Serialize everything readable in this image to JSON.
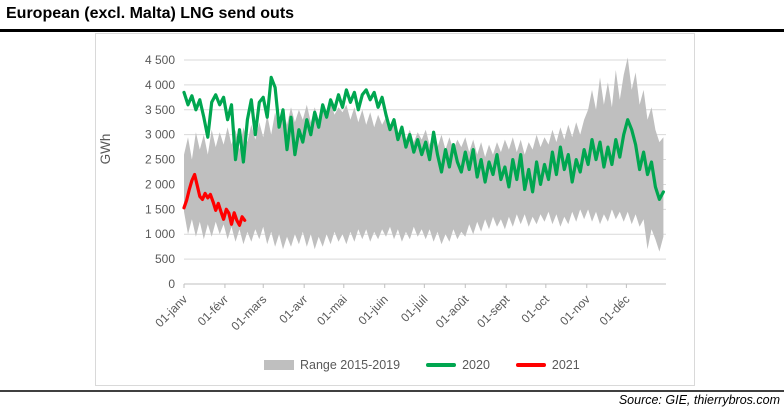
{
  "page": {
    "title": "European (excl. Malta) LNG send outs",
    "source": "Source: GIE, thierrybros.com"
  },
  "colors": {
    "band": "#BFBFBF",
    "series_2020": "#00A650",
    "series_2021": "#FF0000",
    "grid": "#D9D9D9",
    "axis_line": "#BFBFBF",
    "axis_text": "#595959",
    "title_text": "#000000"
  },
  "chart_data": {
    "type": "line",
    "title": "European (excl. Malta) LNG send outs",
    "xlabel": "",
    "ylabel": "GWh",
    "ylim": [
      0,
      4500
    ],
    "x_domain_days": [
      0,
      365
    ],
    "grid": true,
    "legend_position": "bottom",
    "y_tick_values": [
      0,
      500,
      1000,
      1500,
      2000,
      2500,
      3000,
      3500,
      4000,
      4500
    ],
    "y_tick_labels": [
      "0",
      "500",
      "1 000",
      "1 500",
      "2 000",
      "2 500",
      "3 000",
      "3 500",
      "4 000",
      "4 500"
    ],
    "x_ticks": [
      {
        "day": 0,
        "label": "01-janv"
      },
      {
        "day": 31,
        "label": "01-févr"
      },
      {
        "day": 60,
        "label": "01-mars"
      },
      {
        "day": 91,
        "label": "01-avr"
      },
      {
        "day": 121,
        "label": "01-mai"
      },
      {
        "day": 152,
        "label": "01-juin"
      },
      {
        "day": 182,
        "label": "01-juil"
      },
      {
        "day": 213,
        "label": "01-août"
      },
      {
        "day": 244,
        "label": "01-sept"
      },
      {
        "day": 274,
        "label": "01-oct"
      },
      {
        "day": 305,
        "label": "01-nov"
      },
      {
        "day": 335,
        "label": "01-déc"
      }
    ],
    "band": {
      "name": "Range 2015-2019",
      "color": "#BFBFBF",
      "day_start": 0,
      "day_step": 3,
      "max": [
        2600,
        2950,
        2500,
        3050,
        2700,
        3000,
        2600,
        3100,
        2750,
        3050,
        2800,
        3150,
        2800,
        3100,
        2700,
        3150,
        2850,
        3200,
        2900,
        3250,
        2950,
        3400,
        3000,
        3450,
        3100,
        3500,
        3200,
        3550,
        3250,
        3500,
        3300,
        3600,
        3250,
        3550,
        3300,
        3600,
        3350,
        3650,
        3400,
        3550,
        3450,
        3600,
        3300,
        3550,
        3250,
        3500,
        3200,
        3450,
        3150,
        3400,
        3200,
        3350,
        3050,
        3250,
        2950,
        3150,
        2900,
        3100,
        2850,
        3050,
        2900,
        3100,
        2800,
        3050,
        2750,
        3000,
        2700,
        2950,
        2700,
        2900,
        2750,
        2950,
        2650,
        2900,
        2600,
        2850,
        2550,
        2800,
        2600,
        2850,
        2650,
        2900,
        2700,
        2950,
        2650,
        2900,
        2600,
        2850,
        2700,
        3000,
        2750,
        2950,
        2800,
        3100,
        2850,
        3150,
        2900,
        3200,
        2950,
        3250,
        3000,
        3300,
        3500,
        3900,
        3500,
        4150,
        3600,
        4050,
        3550,
        4300,
        3700,
        4200,
        4550,
        3900,
        4250,
        3600,
        3900,
        3300,
        3550,
        3100,
        2850,
        2950
      ],
      "min": [
        1450,
        1000,
        1300,
        950,
        1250,
        900,
        1200,
        950,
        1250,
        1000,
        1200,
        900,
        1150,
        850,
        1100,
        800,
        1050,
        850,
        1100,
        900,
        1150,
        800,
        1050,
        750,
        1000,
        700,
        950,
        750,
        1000,
        800,
        1050,
        750,
        1000,
        700,
        950,
        750,
        1000,
        800,
        1050,
        850,
        1000,
        800,
        1050,
        850,
        1100,
        900,
        1100,
        850,
        1050,
        900,
        1100,
        950,
        1150,
        900,
        1100,
        850,
        1050,
        900,
        1150,
        950,
        1100,
        900,
        1100,
        850,
        1050,
        800,
        1000,
        850,
        1100,
        900,
        1050,
        950,
        1200,
        1000,
        1250,
        1050,
        1300,
        1100,
        1350,
        1150,
        1300,
        1100,
        1350,
        1150,
        1400,
        1200,
        1400,
        1150,
        1350,
        1200,
        1400,
        1250,
        1450,
        1200,
        1400,
        1150,
        1350,
        1200,
        1450,
        1250,
        1500,
        1300,
        1500,
        1250,
        1450,
        1200,
        1400,
        1250,
        1500,
        1300,
        1450,
        1250,
        1450,
        1200,
        1400,
        1150,
        1300,
        700,
        1100,
        900,
        650,
        950
      ]
    },
    "series": [
      {
        "name": "2020",
        "color": "#00A650",
        "day_start": 0,
        "day_step": 3,
        "values": [
          3850,
          3600,
          3780,
          3500,
          3700,
          3350,
          2950,
          3650,
          3800,
          3600,
          3750,
          3300,
          3600,
          2500,
          3100,
          2450,
          3300,
          3700,
          3000,
          3650,
          3750,
          3350,
          4150,
          3950,
          3150,
          3500,
          2700,
          3350,
          2600,
          3100,
          2850,
          3300,
          3000,
          3450,
          3150,
          3600,
          3350,
          3700,
          3500,
          3800,
          3550,
          3900,
          3650,
          3850,
          3500,
          3800,
          3900,
          3700,
          3850,
          3550,
          3750,
          3400,
          3100,
          3300,
          2900,
          3150,
          2750,
          3000,
          2650,
          2900,
          2600,
          2850,
          2500,
          3050,
          2600,
          2250,
          2700,
          2350,
          2800,
          2450,
          2250,
          2650,
          2300,
          2700,
          2150,
          2500,
          2050,
          2450,
          2200,
          2600,
          2100,
          2350,
          1950,
          2500,
          2100,
          2600,
          1900,
          2300,
          1850,
          2450,
          2000,
          2400,
          2100,
          2650,
          2200,
          2750,
          2300,
          2600,
          2050,
          2500,
          2250,
          2700,
          2400,
          2900,
          2500,
          2850,
          2350,
          2750,
          2400,
          2900,
          2550,
          3000,
          3300,
          3100,
          2800,
          2300,
          2650,
          2200,
          2450,
          1950,
          1700,
          1850
        ]
      },
      {
        "name": "2021",
        "color": "#FF0000",
        "day_start": 0,
        "day_step": 2,
        "values": [
          1530,
          1680,
          1900,
          2080,
          2200,
          1980,
          1760,
          1700,
          1820,
          1730,
          1800,
          1650,
          1480,
          1620,
          1450,
          1300,
          1500,
          1420,
          1200,
          1430,
          1280,
          1180,
          1350,
          1280
        ]
      }
    ],
    "legend": [
      {
        "swatch": "band",
        "color": "#BFBFBF",
        "label": "Range 2015-2019"
      },
      {
        "swatch": "line",
        "color": "#00A650",
        "label": "2020"
      },
      {
        "swatch": "line",
        "color": "#FF0000",
        "label": "2021"
      }
    ]
  }
}
